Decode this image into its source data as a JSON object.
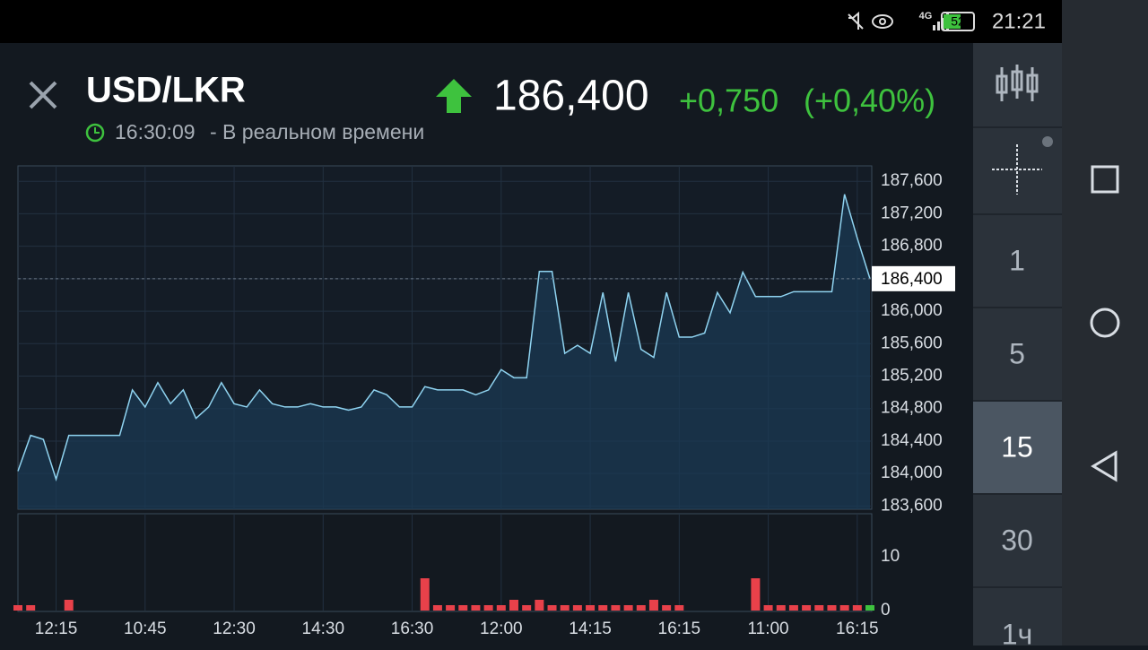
{
  "status_bar": {
    "network": "4G",
    "battery": "52",
    "time": "21:21"
  },
  "header": {
    "symbol": "USD/LKR",
    "time": "16:30:09",
    "mode": "- В реальном времени",
    "price": "186,400",
    "change": "+0,750",
    "change_pct": "(+0,40%)"
  },
  "sidebar": {
    "intervals": [
      "1",
      "5",
      "15",
      "30",
      "1ч"
    ],
    "selected": "15"
  },
  "chart_data": [
    {
      "type": "line",
      "color": "#8fd3f0",
      "fill": "#1a3a55",
      "grid": true,
      "values": [
        184030,
        184470,
        184420,
        183930,
        184470,
        184470,
        184470,
        184470,
        184470,
        185030,
        184820,
        185120,
        184860,
        185030,
        184680,
        184820,
        185120,
        184860,
        184820,
        185030,
        184860,
        184820,
        184820,
        184860,
        184820,
        184820,
        184780,
        184820,
        185030,
        184970,
        184820,
        184820,
        185070,
        185030,
        185030,
        185030,
        184970,
        185030,
        185280,
        185180,
        185180,
        186490,
        186490,
        185480,
        185580,
        185480,
        186230,
        185380,
        186230,
        185530,
        185430,
        186230,
        185680,
        185680,
        185730,
        186230,
        185980,
        186480,
        186180,
        186180,
        186180,
        186240,
        186240,
        186240,
        186240,
        187440,
        186900,
        186400
      ],
      "ylim": [
        183560,
        187790
      ],
      "yticks": [
        {
          "value": 183600,
          "label": "183,600"
        },
        {
          "value": 184000,
          "label": "184,000"
        },
        {
          "value": 184400,
          "label": "184,400"
        },
        {
          "value": 184800,
          "label": "184,800"
        },
        {
          "value": 185200,
          "label": "185,200"
        },
        {
          "value": 185600,
          "label": "185,600"
        },
        {
          "value": 186000,
          "label": "186,000"
        },
        {
          "value": 186400,
          "label": "186,400"
        },
        {
          "value": 186800,
          "label": "186,800"
        },
        {
          "value": 187200,
          "label": "187,200"
        },
        {
          "value": 187600,
          "label": "187,600"
        }
      ]
    },
    {
      "type": "bar",
      "grid": true,
      "categories": [
        null,
        null,
        null,
        "12:15",
        null,
        null,
        null,
        null,
        null,
        null,
        "10:45",
        null,
        null,
        null,
        null,
        null,
        null,
        "12:30",
        null,
        null,
        null,
        null,
        null,
        null,
        "14:30",
        null,
        null,
        null,
        null,
        null,
        null,
        "16:30",
        null,
        null,
        null,
        null,
        null,
        null,
        "12:00",
        null,
        null,
        null,
        null,
        null,
        null,
        "14:15",
        null,
        null,
        null,
        null,
        null,
        null,
        "16:15",
        null,
        null,
        null,
        null,
        null,
        null,
        "11:00",
        null,
        null,
        null,
        null,
        null,
        null,
        "16:15",
        null
      ],
      "values": [
        1,
        1,
        0,
        0,
        2,
        0,
        0,
        0,
        0,
        0,
        0,
        0,
        0,
        0,
        0,
        0,
        0,
        0,
        0,
        0,
        0,
        0,
        0,
        0,
        0,
        0,
        0,
        0,
        0,
        0,
        0,
        0,
        6,
        1,
        1,
        1,
        1,
        1,
        1,
        2,
        1,
        2,
        1,
        1,
        1,
        1,
        1,
        1,
        1,
        1,
        2,
        1,
        1,
        0,
        0,
        0,
        0,
        0,
        6,
        1,
        1,
        1,
        1,
        1,
        1,
        1,
        1,
        1
      ],
      "colors": [
        "#e8414a",
        "#e8414a",
        "#e8414a",
        "#e8414a",
        "#e8414a",
        "#e8414a",
        "#e8414a",
        "#e8414a",
        "#e8414a",
        "#e8414a",
        "#e8414a",
        "#e8414a",
        "#e8414a",
        "#e8414a",
        "#e8414a",
        "#e8414a",
        "#e8414a",
        "#e8414a",
        "#e8414a",
        "#e8414a",
        "#e8414a",
        "#e8414a",
        "#e8414a",
        "#e8414a",
        "#e8414a",
        "#e8414a",
        "#e8414a",
        "#e8414a",
        "#e8414a",
        "#e8414a",
        "#e8414a",
        "#e8414a",
        "#e8414a",
        "#e8414a",
        "#e8414a",
        "#e8414a",
        "#e8414a",
        "#e8414a",
        "#e8414a",
        "#e8414a",
        "#e8414a",
        "#e8414a",
        "#e8414a",
        "#e8414a",
        "#e8414a",
        "#e8414a",
        "#e8414a",
        "#e8414a",
        "#e8414a",
        "#e8414a",
        "#e8414a",
        "#e8414a",
        "#e8414a",
        "#e8414a",
        "#e8414a",
        "#e8414a",
        "#e8414a",
        "#e8414a",
        "#e8414a",
        "#e8414a",
        "#e8414a",
        "#e8414a",
        "#e8414a",
        "#e8414a",
        "#e8414a",
        "#e8414a",
        "#e8414a",
        "#3ec23e"
      ],
      "ylim": [
        0,
        18
      ],
      "yticks": [
        0,
        10
      ]
    }
  ]
}
